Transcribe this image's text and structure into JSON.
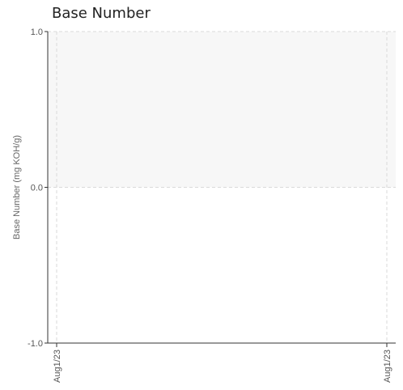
{
  "chart_data": {
    "type": "line",
    "title": "Base Number",
    "xlabel": "",
    "ylabel": "Base Number (mg KOH/g)",
    "x_ticks": [
      "Aug1/23",
      "Aug1/23"
    ],
    "y_ticks": [
      1.0,
      0.0,
      -1.0
    ],
    "y_tick_labels": [
      "1.0",
      "0.0",
      "-1.0"
    ],
    "ylim": [
      -1.0,
      1.0
    ],
    "grid": true,
    "shaded_band": [
      0.0,
      1.0
    ],
    "series": [],
    "colors": {
      "grid": "#d9d9d9",
      "band": "#f7f7f7",
      "axis": "#333333"
    }
  }
}
